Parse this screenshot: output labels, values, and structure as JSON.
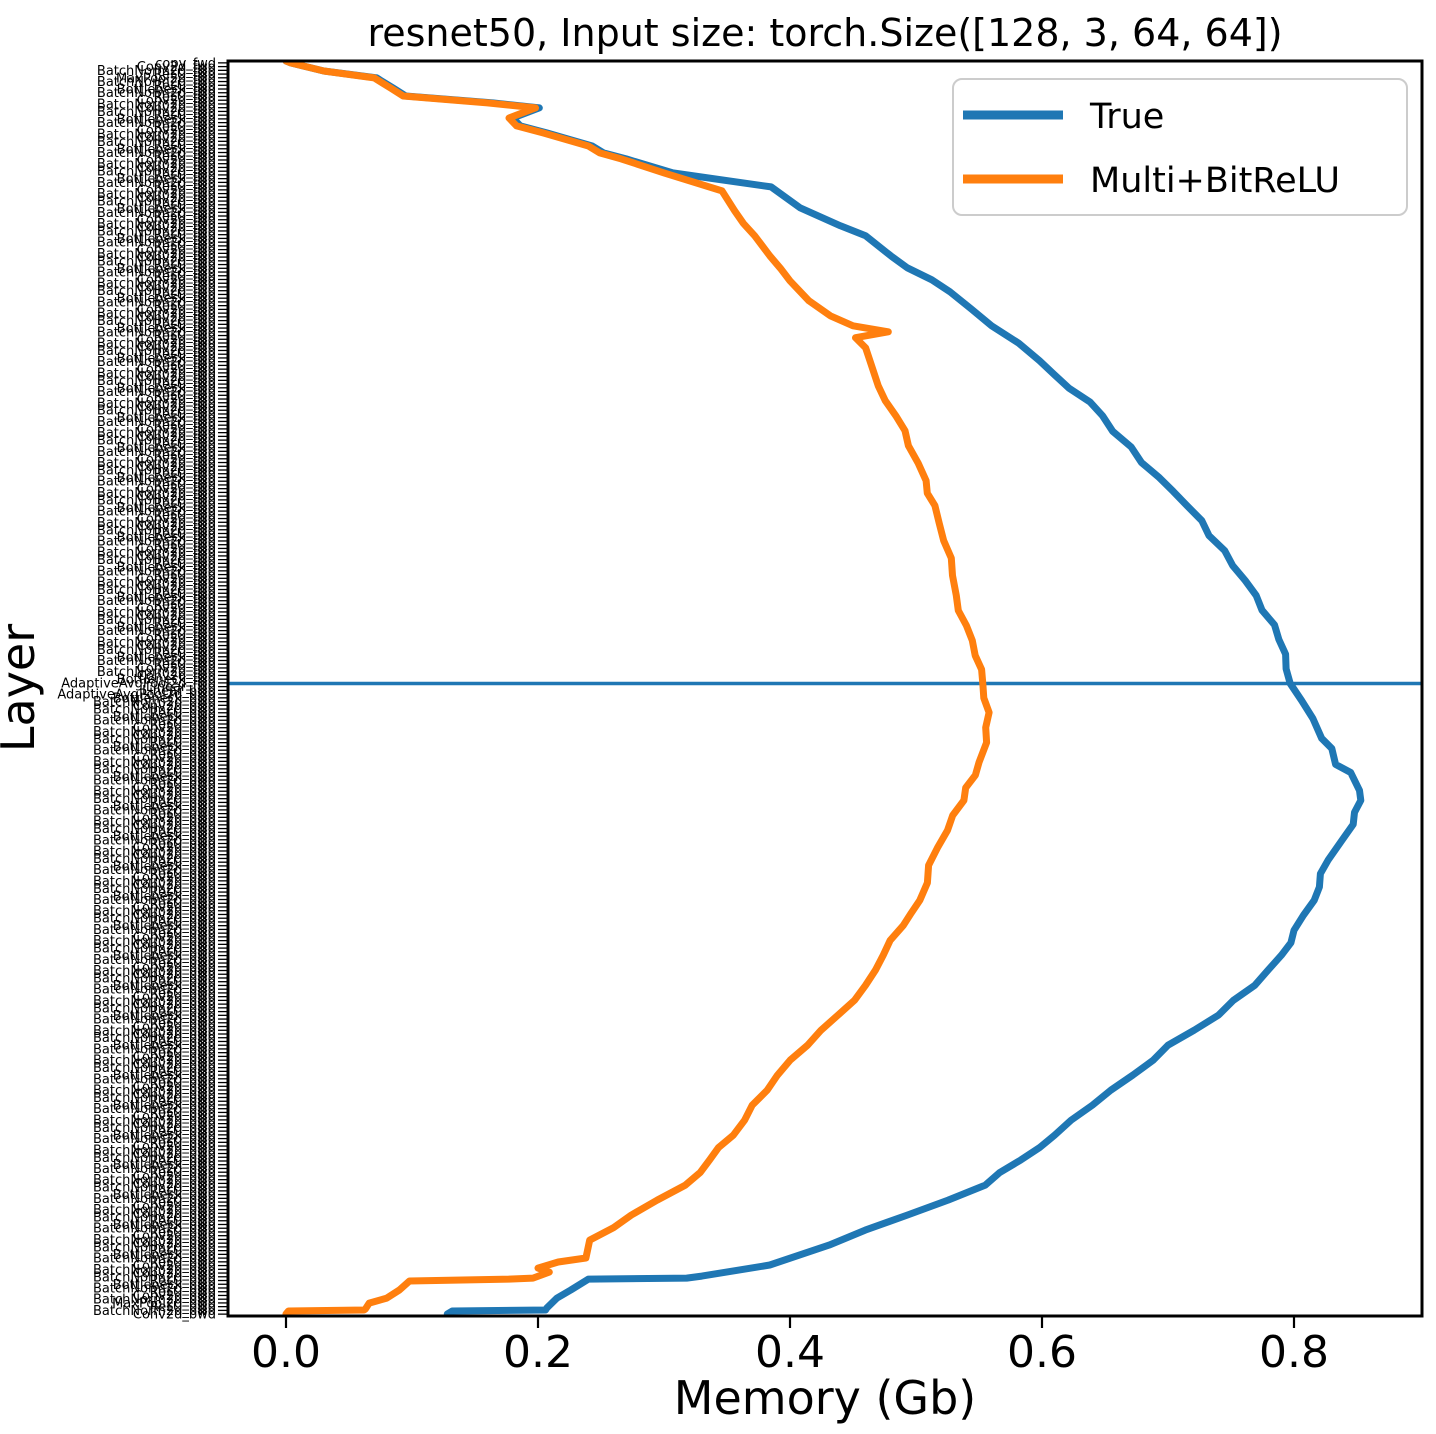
{
  "title": "resnet50, Input size: torch.Size([128, 3, 64, 64])",
  "x_axis": {
    "label": "Memory (Gb)",
    "ticks": [
      0.0,
      0.2,
      0.4,
      0.6,
      0.8
    ],
    "range_gb": [
      -0.046,
      0.901
    ]
  },
  "y_axis": {
    "label": "Layer",
    "tick_count": 336,
    "order": "first layer at top, last layer at bottom",
    "label_families": [
      "Conv2d",
      "BatchNorm2d",
      "ReLU",
      "MaxPool2d",
      "Bottleneck",
      "AdaptiveAvgPool2d",
      "Linear",
      "copy"
    ],
    "forward_suffix": "_fwd",
    "backward_suffix": "_bwd"
  },
  "legend": {
    "position": "upper right",
    "entries": [
      {
        "label": "True",
        "color": "#1f77b4"
      },
      {
        "label": "Multi+BitReLU",
        "color": "#ff7f0e"
      }
    ]
  },
  "colors": {
    "true_line": "#1f77b4",
    "multi_line": "#ff7f0e",
    "hline": "#1f77b4",
    "spine": "#000000",
    "background": "#ffffff",
    "legend_border": "#cccccc"
  },
  "chart_data": {
    "type": "line",
    "title": "resnet50, Input size: torch.Size([128, 3, 64, 64])",
    "xlabel": "Memory (Gb)",
    "ylabel": "Layer",
    "xlim": [
      -0.046,
      0.901
    ],
    "grid": false,
    "legend_position": "upper right",
    "orientation": "memory (Gb) on x axis; layer depth on y axis, t = 0 top (first layer) to 1 bottom (last layer)",
    "hline_t": 0.496,
    "peak_memory_gb": {
      "True": 0.853,
      "Multi+BitReLU": 0.558
    },
    "end_memory_gb": {
      "True": 0.128,
      "Multi+BitReLU": 0.0
    },
    "series": [
      {
        "name": "True",
        "color": "#1f77b4",
        "points_t_gb": [
          [
            0.0,
            0.0
          ],
          [
            0.0016,
            0.004
          ],
          [
            0.008,
            0.03
          ],
          [
            0.0135,
            0.072
          ],
          [
            0.0215,
            0.085
          ],
          [
            0.0279,
            0.095
          ],
          [
            0.0334,
            0.164
          ],
          [
            0.0374,
            0.201
          ],
          [
            0.0454,
            0.18
          ],
          [
            0.0517,
            0.186
          ],
          [
            0.0573,
            0.207
          ],
          [
            0.0677,
            0.243
          ],
          [
            0.0732,
            0.252
          ],
          [
            0.078,
            0.27
          ],
          [
            0.0892,
            0.307
          ],
          [
            0.1003,
            0.385
          ],
          [
            0.117,
            0.408
          ],
          [
            0.1313,
            0.44
          ],
          [
            0.1393,
            0.46
          ],
          [
            0.1552,
            0.48
          ],
          [
            0.1839,
            0.527
          ],
          [
            0.211,
            0.56
          ],
          [
            0.2388,
            0.598
          ],
          [
            0.2826,
            0.648
          ],
          [
            0.32,
            0.679
          ],
          [
            0.3543,
            0.715
          ],
          [
            0.3901,
            0.745
          ],
          [
            0.4259,
            0.77
          ],
          [
            0.461,
            0.788
          ],
          [
            0.496,
            0.797
          ],
          [
            0.5096,
            0.806
          ],
          [
            0.5239,
            0.815
          ],
          [
            0.5398,
            0.822
          ],
          [
            0.5478,
            0.83
          ],
          [
            0.5605,
            0.833
          ],
          [
            0.5669,
            0.845
          ],
          [
            0.5812,
            0.852
          ],
          [
            0.5892,
            0.853
          ],
          [
            0.5987,
            0.848
          ],
          [
            0.6083,
            0.847
          ],
          [
            0.621,
            0.838
          ],
          [
            0.6369,
            0.827
          ],
          [
            0.6688,
            0.816
          ],
          [
            0.6927,
            0.8
          ],
          [
            0.7125,
            0.79
          ],
          [
            0.7364,
            0.769
          ],
          [
            0.7603,
            0.74
          ],
          [
            0.7842,
            0.7
          ],
          [
            0.8081,
            0.672
          ],
          [
            0.832,
            0.64
          ],
          [
            0.8559,
            0.61
          ],
          [
            0.8957,
            0.555
          ],
          [
            0.9196,
            0.493
          ],
          [
            0.9435,
            0.431
          ],
          [
            0.9594,
            0.384
          ],
          [
            0.9682,
            0.33
          ],
          [
            0.9698,
            0.318
          ],
          [
            0.9706,
            0.24
          ],
          [
            0.9793,
            0.226
          ],
          [
            0.9857,
            0.215
          ],
          [
            0.9936,
            0.207
          ],
          [
            0.9952,
            0.206
          ],
          [
            0.996,
            0.132
          ],
          [
            0.9984,
            0.128
          ]
        ]
      },
      {
        "name": "Multi+BitReLU",
        "color": "#ff7f0e",
        "points_t_gb": [
          [
            0.0,
            0.0
          ],
          [
            0.0016,
            0.004
          ],
          [
            0.008,
            0.03
          ],
          [
            0.0135,
            0.07
          ],
          [
            0.0215,
            0.083
          ],
          [
            0.0279,
            0.093
          ],
          [
            0.0334,
            0.16
          ],
          [
            0.0374,
            0.198
          ],
          [
            0.0454,
            0.177
          ],
          [
            0.0517,
            0.183
          ],
          [
            0.0573,
            0.204
          ],
          [
            0.0677,
            0.24
          ],
          [
            0.0732,
            0.249
          ],
          [
            0.078,
            0.266
          ],
          [
            0.0892,
            0.3
          ],
          [
            0.1035,
            0.346
          ],
          [
            0.1194,
            0.356
          ],
          [
            0.1393,
            0.372
          ],
          [
            0.1552,
            0.384
          ],
          [
            0.1752,
            0.4
          ],
          [
            0.1911,
            0.415
          ],
          [
            0.203,
            0.432
          ],
          [
            0.211,
            0.45
          ],
          [
            0.2158,
            0.478
          ],
          [
            0.2205,
            0.452
          ],
          [
            0.2285,
            0.46
          ],
          [
            0.2404,
            0.464
          ],
          [
            0.2587,
            0.47
          ],
          [
            0.2826,
            0.484
          ],
          [
            0.3065,
            0.494
          ],
          [
            0.3344,
            0.508
          ],
          [
            0.3543,
            0.515
          ],
          [
            0.3822,
            0.522
          ],
          [
            0.41,
            0.529
          ],
          [
            0.4259,
            0.532
          ],
          [
            0.4498,
            0.54
          ],
          [
            0.4737,
            0.547
          ],
          [
            0.496,
            0.553
          ],
          [
            0.5191,
            0.558
          ],
          [
            0.543,
            0.556
          ],
          [
            0.5589,
            0.55
          ],
          [
            0.5892,
            0.538
          ],
          [
            0.6131,
            0.525
          ],
          [
            0.6409,
            0.51
          ],
          [
            0.6688,
            0.503
          ],
          [
            0.6887,
            0.49
          ],
          [
            0.7125,
            0.474
          ],
          [
            0.7364,
            0.46
          ],
          [
            0.7603,
            0.438
          ],
          [
            0.7842,
            0.414
          ],
          [
            0.8081,
            0.39
          ],
          [
            0.832,
            0.37
          ],
          [
            0.8559,
            0.355
          ],
          [
            0.8957,
            0.317
          ],
          [
            0.9196,
            0.274
          ],
          [
            0.9395,
            0.241
          ],
          [
            0.9538,
            0.238
          ],
          [
            0.957,
            0.216
          ],
          [
            0.9618,
            0.2
          ],
          [
            0.965,
            0.209
          ],
          [
            0.9698,
            0.196
          ],
          [
            0.9706,
            0.177
          ],
          [
            0.9721,
            0.098
          ],
          [
            0.9793,
            0.09
          ],
          [
            0.9857,
            0.08
          ],
          [
            0.9897,
            0.066
          ],
          [
            0.9944,
            0.063
          ],
          [
            0.9952,
            0.062
          ],
          [
            0.996,
            0.002
          ],
          [
            0.9984,
            0.0
          ]
        ]
      }
    ]
  }
}
